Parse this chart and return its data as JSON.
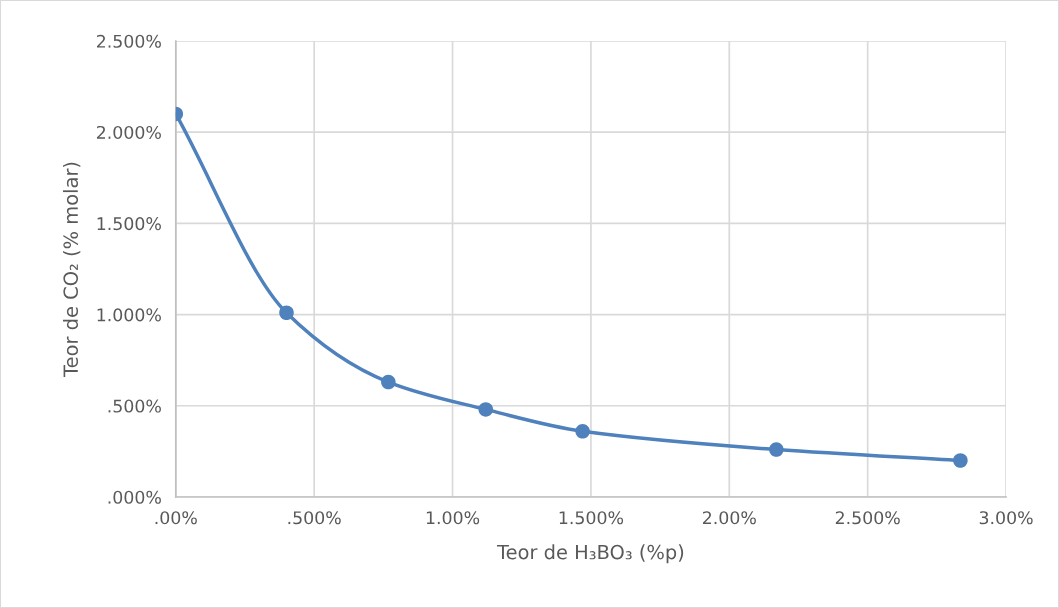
{
  "chart_data": {
    "type": "line",
    "xlabel": "Teor de H₃BO₃ (%p)",
    "ylabel": "Teor de CO₂ (% molar)",
    "x": [
      0,
      0.4,
      0.768,
      1.12,
      1.47,
      2.17,
      2.835
    ],
    "series": [
      {
        "color": "#4f81bd",
        "values": [
          2.1,
          1.01,
          0.63,
          0.48,
          0.36,
          0.26,
          0.2
        ]
      }
    ],
    "xlim": [
      0,
      3
    ],
    "ylim": [
      0,
      2.5
    ],
    "xticks": [
      {
        "value": 0,
        "label": ".00%"
      },
      {
        "value": 0.5,
        "label": ".500%"
      },
      {
        "value": 1,
        "label": "1.00%"
      },
      {
        "value": 1.5,
        "label": "1.500%"
      },
      {
        "value": 2,
        "label": "2.00%"
      },
      {
        "value": 2.5,
        "label": "2.500%"
      },
      {
        "value": 3,
        "label": "3.00%"
      }
    ],
    "yticks": [
      {
        "value": 0,
        "label": ".000%"
      },
      {
        "value": 0.5,
        "label": ".500%"
      },
      {
        "value": 1,
        "label": "1.000%"
      },
      {
        "value": 1.5,
        "label": "1.500%"
      },
      {
        "value": 2,
        "label": "2.000%"
      },
      {
        "value": 2.5,
        "label": "2.500%"
      }
    ],
    "grid": true,
    "marker": "circle",
    "line_style": "solid",
    "legend": false
  }
}
